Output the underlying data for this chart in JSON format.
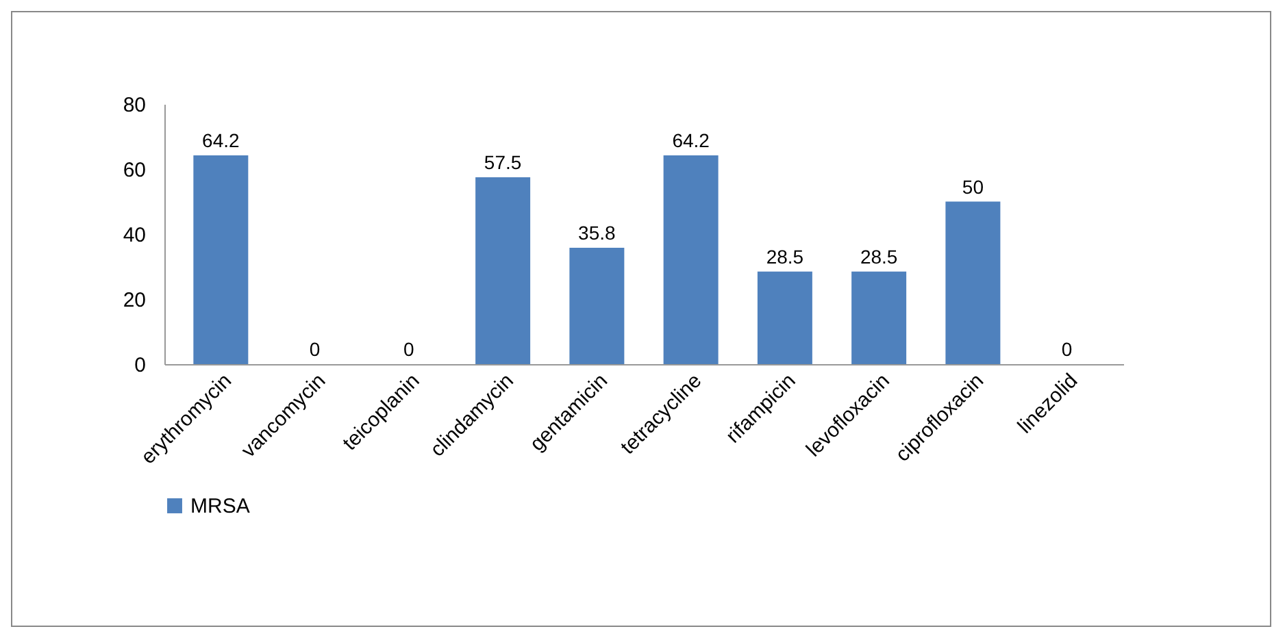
{
  "chart_data": {
    "type": "bar",
    "categories": [
      "erythromycin",
      "vancomycin",
      "teicoplanin",
      "clindamycin",
      "gentamicin",
      "tetracycline",
      "rifampicin",
      "levofloxacin",
      "ciprofloxacin",
      "linezolid"
    ],
    "series": [
      {
        "name": "MRSA",
        "color": "#4f81bd",
        "values": [
          64.2,
          0,
          0,
          57.5,
          35.8,
          64.2,
          28.5,
          28.5,
          50,
          0
        ]
      }
    ],
    "ylim": [
      0,
      80
    ],
    "yticks": [
      0,
      20,
      40,
      60,
      80
    ],
    "data_labels": true,
    "grid": false,
    "legend": "bottom"
  }
}
